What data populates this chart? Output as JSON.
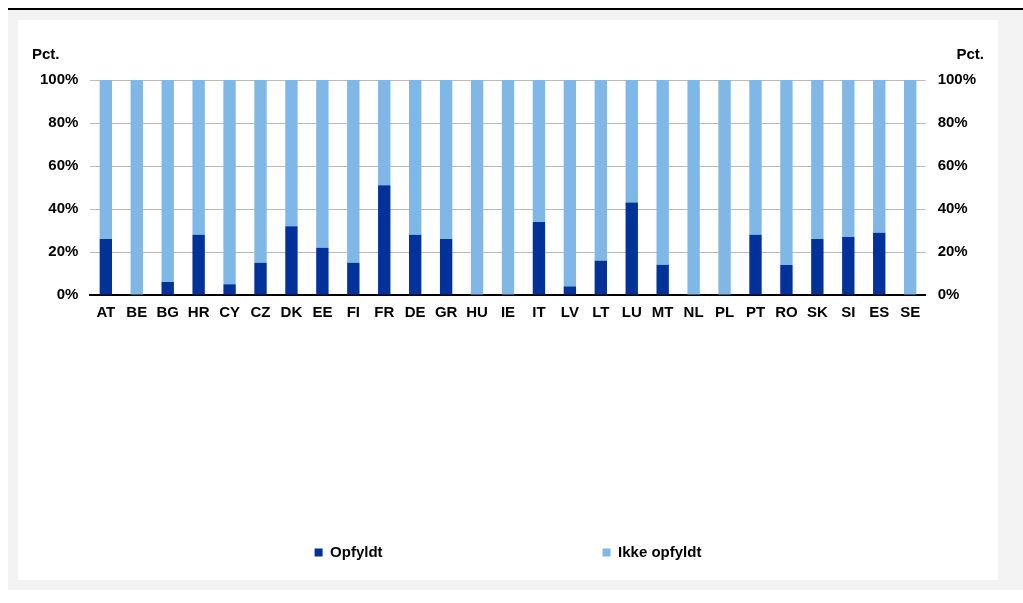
{
  "chart_data": {
    "type": "bar",
    "stacked": true,
    "ylabel": "Pct.",
    "y2label": "Pct.",
    "categories": [
      "AT",
      "BE",
      "BG",
      "HR",
      "CY",
      "CZ",
      "DK",
      "EE",
      "FI",
      "FR",
      "DE",
      "GR",
      "HU",
      "IE",
      "IT",
      "LV",
      "LT",
      "LU",
      "MT",
      "NL",
      "PL",
      "PT",
      "RO",
      "SK",
      "SI",
      "ES",
      "SE"
    ],
    "series": [
      {
        "name": "Opfyldt",
        "color": "#003299",
        "values": [
          26,
          0,
          6,
          28,
          5,
          15,
          32,
          22,
          15,
          51,
          28,
          26,
          0,
          0,
          34,
          4,
          16,
          43,
          14,
          0,
          0,
          28,
          14,
          26,
          27,
          29,
          0
        ]
      },
      {
        "name": "Ikke opfyldt",
        "color": "#7fb8e6",
        "values": [
          74,
          100,
          94,
          72,
          95,
          85,
          68,
          78,
          85,
          49,
          72,
          74,
          100,
          100,
          66,
          96,
          84,
          57,
          86,
          100,
          100,
          72,
          86,
          74,
          73,
          71,
          100
        ]
      }
    ],
    "ylim": [
      0,
      100
    ],
    "yticks": [
      {
        "value": 0,
        "label": "0%"
      },
      {
        "value": 20,
        "label": "20%"
      },
      {
        "value": 40,
        "label": "40%"
      },
      {
        "value": 60,
        "label": "60%"
      },
      {
        "value": 80,
        "label": "80%"
      },
      {
        "value": 100,
        "label": "100%"
      }
    ],
    "y2lim": [
      0,
      100
    ],
    "y2ticks": [
      {
        "value": 0,
        "label": "0%"
      },
      {
        "value": 20,
        "label": "20%"
      },
      {
        "value": 40,
        "label": "40%"
      },
      {
        "value": 60,
        "label": "60%"
      },
      {
        "value": 80,
        "label": "80%"
      },
      {
        "value": 100,
        "label": "100%"
      }
    ],
    "grid": "y",
    "legend": "bottom"
  }
}
